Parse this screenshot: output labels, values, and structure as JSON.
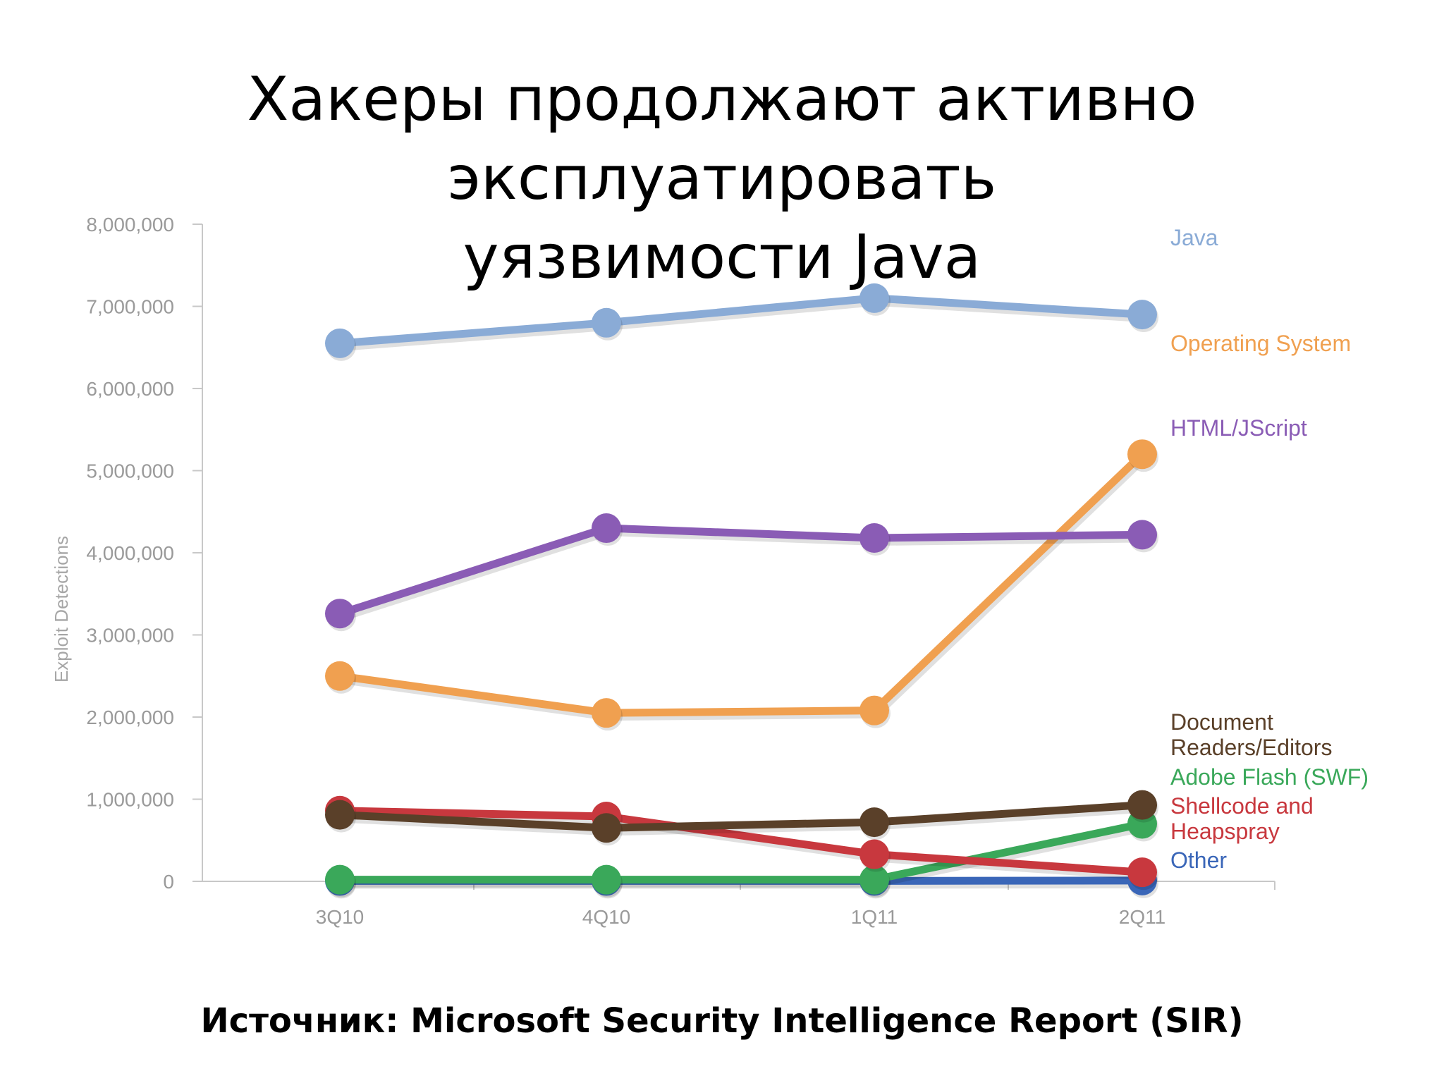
{
  "slide": {
    "title_line1": "Хакеры продолжают активно эксплуатировать",
    "title_line2": "уязвимости Java",
    "source": "Источник: Microsoft Security Intelligence Report (SIR)"
  },
  "chart_data": {
    "type": "line",
    "title": "",
    "xlabel": "",
    "ylabel": "Exploit Detections",
    "categories": [
      "3Q10",
      "4Q10",
      "1Q11",
      "2Q11"
    ],
    "ylim": [
      0,
      8000000
    ],
    "yticks": [
      0,
      1000000,
      2000000,
      3000000,
      4000000,
      5000000,
      6000000,
      7000000,
      8000000
    ],
    "ytick_labels": [
      "0",
      "1,000,000",
      "2,000,000",
      "3,000,000",
      "4,000,000",
      "5,000,000",
      "6,000,000",
      "7,000,000",
      "8,000,000"
    ],
    "grid": false,
    "legend": "direct labels at right end of each line",
    "series": [
      {
        "name": "Java",
        "color": "#8aabd6",
        "values": [
          6550000,
          6800000,
          7100000,
          6900000
        ]
      },
      {
        "name": "Operating System",
        "color": "#f0a050",
        "values": [
          2500000,
          2050000,
          2080000,
          5200000
        ]
      },
      {
        "name": "HTML/JScript",
        "color": "#8a5cb5",
        "values": [
          3260000,
          4300000,
          4180000,
          4220000
        ]
      },
      {
        "name": "Document Readers/Editors",
        "color": "#5a4029",
        "values": [
          810000,
          650000,
          720000,
          930000
        ]
      },
      {
        "name": "Adobe Flash (SWF)",
        "color": "#3aa85a",
        "values": [
          20000,
          20000,
          20000,
          700000
        ]
      },
      {
        "name": "Shellcode and Heapspray",
        "color": "#c8383e",
        "values": [
          860000,
          790000,
          330000,
          110000
        ]
      },
      {
        "name": "Other",
        "color": "#3a66b8",
        "values": [
          5000,
          5000,
          5000,
          10000
        ]
      }
    ],
    "series_labels": [
      {
        "lines": [
          "Java"
        ],
        "color": "#8aabd6"
      },
      {
        "lines": [
          "Operating System"
        ],
        "color": "#f0a050"
      },
      {
        "lines": [
          "HTML/JScript"
        ],
        "color": "#8a5cb5"
      },
      {
        "lines": [
          "Document",
          "Readers/Editors"
        ],
        "color": "#5a4029"
      },
      {
        "lines": [
          "Adobe Flash (SWF)"
        ],
        "color": "#3aa85a"
      },
      {
        "lines": [
          "Shellcode and",
          "Heapspray"
        ],
        "color": "#c8383e"
      },
      {
        "lines": [
          "Other"
        ],
        "color": "#3a66b8"
      }
    ]
  }
}
